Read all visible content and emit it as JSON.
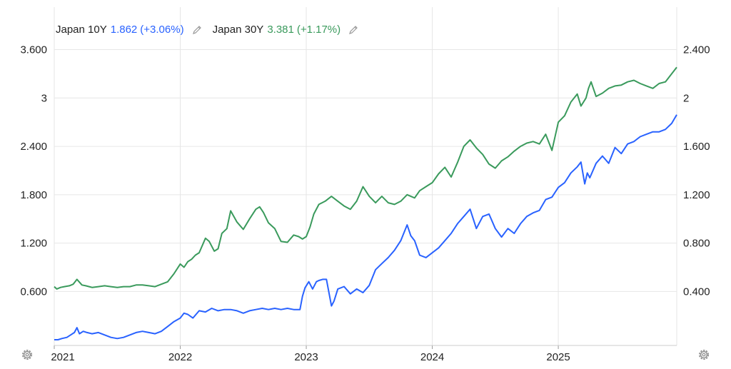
{
  "legend": {
    "items": [
      {
        "name": "Japan 10Y",
        "value": "1.862",
        "change": "(+3.06%)",
        "color": "#2962ff"
      },
      {
        "name": "Japan 30Y",
        "value": "3.381",
        "change": "(+1.17%)",
        "color": "#3a9a5c"
      }
    ]
  },
  "icons": {
    "edit": "pencil-icon",
    "settings": "gear-icon"
  },
  "colors": {
    "grid": "#e6e6e6",
    "axis_text": "#222222",
    "blue": "#2962ff",
    "green": "#3a9a5c"
  },
  "chart_data": {
    "type": "line",
    "x_tick_labels": [
      "2021",
      "2022",
      "2023",
      "2024",
      "2025"
    ],
    "x_range": [
      2021.0,
      2025.94
    ],
    "y_left": {
      "tick_labels": [
        "0.600",
        "1.200",
        "1.800",
        "2.400",
        "3",
        "3.600"
      ],
      "ticks": [
        0.6,
        1.2,
        1.8,
        2.4,
        3.0,
        3.6
      ],
      "range": [
        -0.07,
        3.72
      ]
    },
    "y_right": {
      "tick_labels": [
        "0.400",
        "0.800",
        "1.200",
        "1.600",
        "2",
        "2.400"
      ],
      "ticks": [
        0.4,
        0.8,
        1.2,
        1.6,
        2.0,
        2.4
      ],
      "range": [
        -0.047,
        2.48
      ]
    },
    "series": [
      {
        "name": "Japan 30Y",
        "axis": "left",
        "color": "#3a9a5c",
        "x": [
          2021.0,
          2021.02,
          2021.05,
          2021.08,
          2021.12,
          2021.15,
          2021.18,
          2021.22,
          2021.25,
          2021.3,
          2021.35,
          2021.4,
          2021.45,
          2021.5,
          2021.55,
          2021.6,
          2021.65,
          2021.7,
          2021.75,
          2021.8,
          2021.85,
          2021.9,
          2021.95,
          2022.0,
          2022.03,
          2022.06,
          2022.09,
          2022.12,
          2022.15,
          2022.2,
          2022.23,
          2022.27,
          2022.3,
          2022.33,
          2022.37,
          2022.4,
          2022.45,
          2022.5,
          2022.55,
          2022.6,
          2022.63,
          2022.66,
          2022.7,
          2022.75,
          2022.8,
          2022.85,
          2022.9,
          2022.94,
          2022.97,
          2023.0,
          2023.03,
          2023.06,
          2023.1,
          2023.15,
          2023.2,
          2023.25,
          2023.3,
          2023.35,
          2023.4,
          2023.45,
          2023.5,
          2023.55,
          2023.6,
          2023.65,
          2023.7,
          2023.75,
          2023.8,
          2023.83,
          2023.86,
          2023.9,
          2023.95,
          2024.0,
          2024.05,
          2024.1,
          2024.15,
          2024.2,
          2024.25,
          2024.3,
          2024.35,
          2024.4,
          2024.45,
          2024.5,
          2024.55,
          2024.6,
          2024.65,
          2024.7,
          2024.75,
          2024.8,
          2024.85,
          2024.9,
          2024.95,
          2025.0,
          2025.05,
          2025.1,
          2025.15,
          2025.18,
          2025.22,
          2025.24,
          2025.26,
          2025.3,
          2025.35,
          2025.4,
          2025.45,
          2025.5,
          2025.55,
          2025.6,
          2025.65,
          2025.7,
          2025.75,
          2025.8,
          2025.85,
          2025.9,
          2025.94
        ],
        "values": [
          0.66,
          0.63,
          0.65,
          0.66,
          0.67,
          0.69,
          0.75,
          0.68,
          0.67,
          0.65,
          0.66,
          0.67,
          0.66,
          0.65,
          0.66,
          0.66,
          0.68,
          0.68,
          0.67,
          0.66,
          0.69,
          0.72,
          0.82,
          0.94,
          0.9,
          0.97,
          1.0,
          1.05,
          1.08,
          1.26,
          1.22,
          1.1,
          1.13,
          1.32,
          1.38,
          1.6,
          1.46,
          1.37,
          1.5,
          1.62,
          1.65,
          1.58,
          1.45,
          1.38,
          1.22,
          1.21,
          1.3,
          1.28,
          1.25,
          1.28,
          1.4,
          1.56,
          1.68,
          1.72,
          1.78,
          1.72,
          1.66,
          1.62,
          1.72,
          1.9,
          1.78,
          1.7,
          1.78,
          1.7,
          1.68,
          1.72,
          1.8,
          1.78,
          1.76,
          1.85,
          1.9,
          1.95,
          2.06,
          2.14,
          2.02,
          2.2,
          2.4,
          2.48,
          2.38,
          2.3,
          2.18,
          2.13,
          2.22,
          2.27,
          2.34,
          2.4,
          2.44,
          2.46,
          2.43,
          2.55,
          2.35,
          2.7,
          2.78,
          2.95,
          3.05,
          2.9,
          3.0,
          3.12,
          3.2,
          3.02,
          3.06,
          3.12,
          3.15,
          3.16,
          3.2,
          3.22,
          3.18,
          3.15,
          3.12,
          3.18,
          3.2,
          3.3,
          3.381
        ]
      },
      {
        "name": "Japan 10Y",
        "axis": "right",
        "color": "#2962ff",
        "x": [
          2021.0,
          2021.03,
          2021.06,
          2021.1,
          2021.13,
          2021.16,
          2021.18,
          2021.2,
          2021.23,
          2021.26,
          2021.3,
          2021.35,
          2021.4,
          2021.45,
          2021.5,
          2021.55,
          2021.6,
          2021.65,
          2021.7,
          2021.75,
          2021.8,
          2021.85,
          2021.9,
          2021.95,
          2022.0,
          2022.03,
          2022.06,
          2022.1,
          2022.15,
          2022.2,
          2022.25,
          2022.3,
          2022.35,
          2022.4,
          2022.45,
          2022.5,
          2022.55,
          2022.6,
          2022.65,
          2022.7,
          2022.75,
          2022.8,
          2022.85,
          2022.9,
          2022.95,
          2022.97,
          2022.99,
          2023.02,
          2023.05,
          2023.08,
          2023.1,
          2023.13,
          2023.16,
          2023.2,
          2023.22,
          2023.25,
          2023.3,
          2023.35,
          2023.4,
          2023.45,
          2023.5,
          2023.55,
          2023.6,
          2023.65,
          2023.7,
          2023.75,
          2023.8,
          2023.83,
          2023.86,
          2023.9,
          2023.95,
          2024.0,
          2024.05,
          2024.1,
          2024.15,
          2024.2,
          2024.25,
          2024.3,
          2024.35,
          2024.4,
          2024.45,
          2024.5,
          2024.55,
          2024.6,
          2024.65,
          2024.7,
          2024.75,
          2024.8,
          2024.85,
          2024.9,
          2024.95,
          2025.0,
          2025.05,
          2025.1,
          2025.15,
          2025.18,
          2025.21,
          2025.23,
          2025.25,
          2025.3,
          2025.35,
          2025.4,
          2025.45,
          2025.5,
          2025.55,
          2025.6,
          2025.65,
          2025.7,
          2025.75,
          2025.8,
          2025.85,
          2025.9,
          2025.94
        ],
        "values": [
          0.0,
          0.0,
          0.01,
          0.02,
          0.04,
          0.06,
          0.1,
          0.05,
          0.07,
          0.06,
          0.05,
          0.06,
          0.04,
          0.02,
          0.01,
          0.02,
          0.04,
          0.06,
          0.07,
          0.06,
          0.05,
          0.07,
          0.11,
          0.15,
          0.18,
          0.22,
          0.21,
          0.18,
          0.24,
          0.23,
          0.26,
          0.24,
          0.25,
          0.25,
          0.24,
          0.22,
          0.24,
          0.25,
          0.26,
          0.25,
          0.26,
          0.25,
          0.26,
          0.25,
          0.25,
          0.36,
          0.43,
          0.48,
          0.42,
          0.48,
          0.49,
          0.5,
          0.5,
          0.28,
          0.32,
          0.42,
          0.44,
          0.38,
          0.42,
          0.39,
          0.45,
          0.58,
          0.63,
          0.68,
          0.74,
          0.82,
          0.95,
          0.86,
          0.82,
          0.7,
          0.68,
          0.72,
          0.76,
          0.82,
          0.88,
          0.96,
          1.02,
          1.08,
          0.92,
          1.02,
          1.04,
          0.92,
          0.85,
          0.92,
          0.88,
          0.96,
          1.02,
          1.05,
          1.07,
          1.16,
          1.18,
          1.26,
          1.3,
          1.38,
          1.43,
          1.47,
          1.29,
          1.38,
          1.34,
          1.46,
          1.52,
          1.46,
          1.59,
          1.54,
          1.62,
          1.64,
          1.68,
          1.7,
          1.72,
          1.72,
          1.74,
          1.79,
          1.862
        ]
      }
    ],
    "grid": true,
    "legend_position": "top-left"
  }
}
